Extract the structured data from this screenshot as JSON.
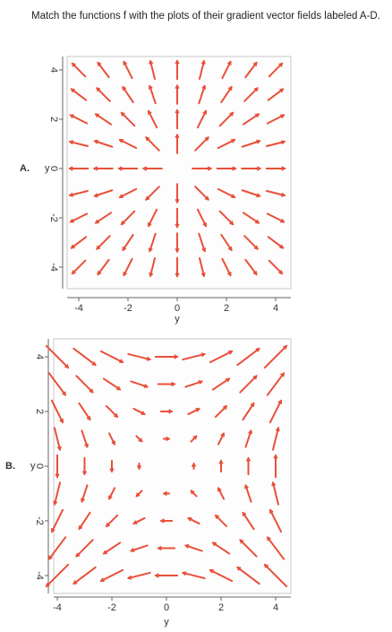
{
  "question": "Match the functions f with the plots of their gradient vector fields labeled A-D.",
  "plots": [
    {
      "label": "A.",
      "y_label": "y",
      "x_label": "y",
      "yticks": [
        4,
        2,
        0,
        -2,
        -4
      ],
      "xticks": [
        -4,
        -2,
        0,
        2,
        4
      ]
    },
    {
      "label": "B.",
      "y_label": "y",
      "x_label": "y",
      "yticks": [
        4,
        2,
        0,
        -2,
        -4
      ],
      "xticks": [
        -4,
        -2,
        0,
        2,
        4
      ]
    }
  ]
}
